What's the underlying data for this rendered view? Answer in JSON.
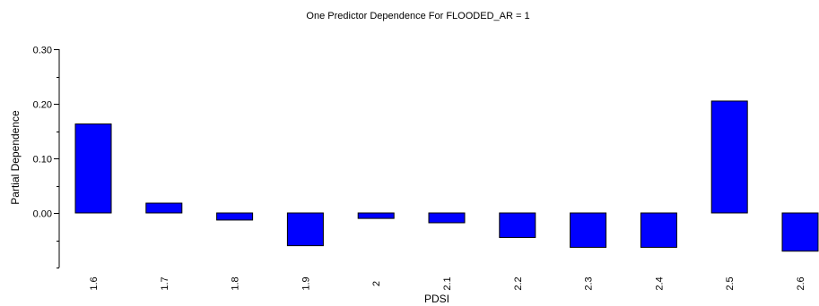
{
  "chart_data": {
    "type": "bar",
    "title": "One Predictor Dependence For FLOODED_AR = 1",
    "xlabel": "PDSI",
    "ylabel": "Partial Dependence",
    "categories": [
      "1.6",
      "1.7",
      "1.8",
      "1.9",
      "2",
      "2.1",
      "2.2",
      "2.3",
      "2.4",
      "2.5",
      "2.6"
    ],
    "values": [
      0.163,
      0.018,
      -0.013,
      -0.06,
      -0.01,
      -0.018,
      -0.045,
      -0.063,
      -0.063,
      0.205,
      -0.07
    ],
    "ylim": [
      -0.1,
      0.3
    ],
    "yticks": [
      "0.00",
      "0.10",
      "0.20",
      "0.30"
    ],
    "bar_color": "#0000ff",
    "bar_edge_color": "#000000",
    "grid": false,
    "legend": false
  }
}
